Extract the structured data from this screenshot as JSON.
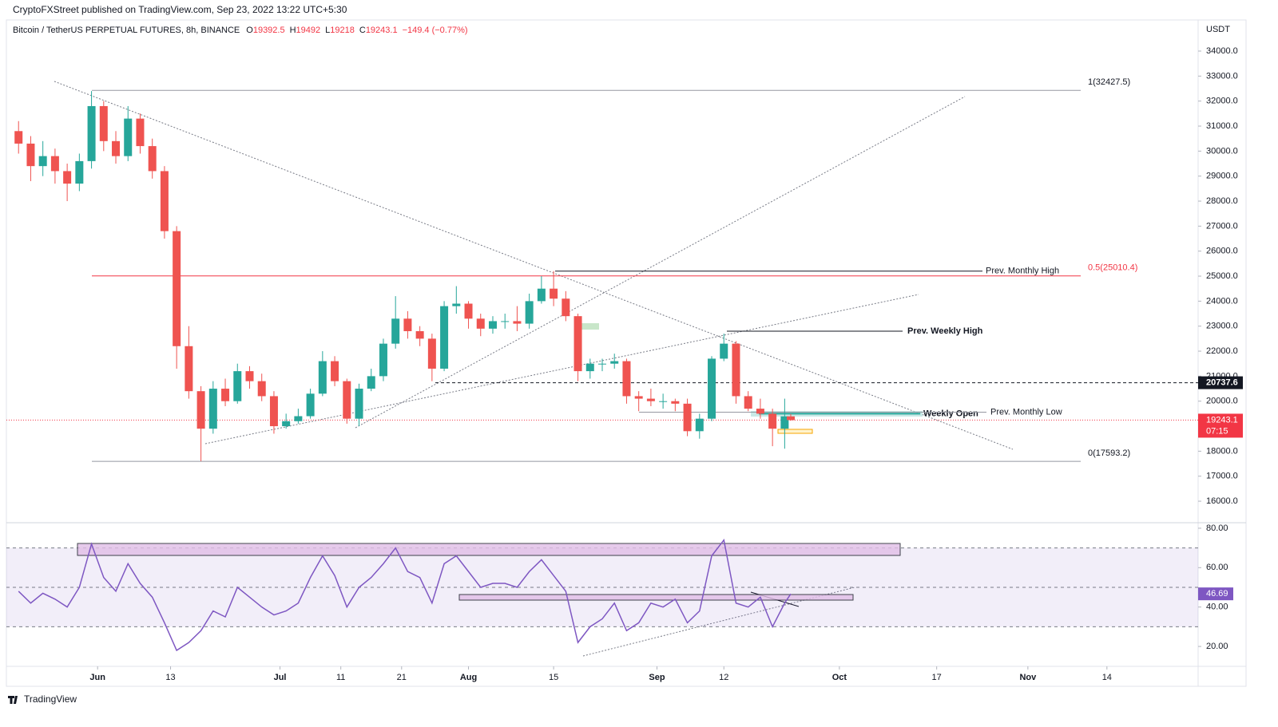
{
  "header": {
    "publisher": "CryptoFXStreet published on TradingView.com, Sep 23, 2022 13:22 UTC+5:30",
    "footer": "TradingView"
  },
  "chart_data": [
    {
      "type": "candlestick",
      "title": "Bitcoin / TetherUS PERPETUAL FUTURES, 8h, BINANCE",
      "ohlc_legend": [
        {
          "key": "O",
          "value": 19392.5
        },
        {
          "key": "H",
          "value": 19492.0
        },
        {
          "key": "L",
          "value": 19218.0
        },
        {
          "key": "C",
          "value": 19243.1
        }
      ],
      "change_label": "−149.4 (−0.77%)",
      "currency": "USDT",
      "x": [
        "2022-05-19",
        "2022-05-21",
        "2022-05-23",
        "2022-05-25",
        "2022-05-27",
        "2022-05-29",
        "2022-05-31",
        "2022-06-02",
        "2022-06-04",
        "2022-06-06",
        "2022-06-08",
        "2022-06-10",
        "2022-06-12",
        "2022-06-14",
        "2022-06-16",
        "2022-06-18",
        "2022-06-20",
        "2022-06-22",
        "2022-06-24",
        "2022-06-26",
        "2022-06-28",
        "2022-06-30",
        "2022-07-02",
        "2022-07-04",
        "2022-07-06",
        "2022-07-08",
        "2022-07-10",
        "2022-07-12",
        "2022-07-14",
        "2022-07-16",
        "2022-07-18",
        "2022-07-20",
        "2022-07-22",
        "2022-07-24",
        "2022-07-26",
        "2022-07-28",
        "2022-07-30",
        "2022-08-01",
        "2022-08-03",
        "2022-08-05",
        "2022-08-07",
        "2022-08-09",
        "2022-08-11",
        "2022-08-13",
        "2022-08-15",
        "2022-08-17",
        "2022-08-19",
        "2022-08-21",
        "2022-08-23",
        "2022-08-25",
        "2022-08-27",
        "2022-08-29",
        "2022-08-31",
        "2022-09-02",
        "2022-09-04",
        "2022-09-06",
        "2022-09-08",
        "2022-09-10",
        "2022-09-12",
        "2022-09-14",
        "2022-09-16",
        "2022-09-18",
        "2022-09-20",
        "2022-09-22",
        "2022-09-23"
      ],
      "open": [
        30800,
        30300,
        29400,
        29800,
        29200,
        28700,
        29600,
        31800,
        30400,
        29800,
        31300,
        30200,
        29200,
        26800,
        22200,
        20400,
        18900,
        20500,
        20000,
        21200,
        20800,
        20200,
        19000,
        19200,
        19400,
        20300,
        21600,
        20800,
        19300,
        20500,
        21000,
        22300,
        23300,
        22800,
        22500,
        21300,
        23800,
        23900,
        23300,
        22900,
        23200,
        23200,
        23100,
        24000,
        24500,
        24100,
        23400,
        21200,
        21500,
        21500,
        21600,
        20200,
        20100,
        20000,
        20000,
        19900,
        18800,
        19300,
        21700,
        22300,
        20200,
        19700,
        19500,
        18900,
        19392.5
      ],
      "high": [
        31200,
        30600,
        30400,
        30100,
        29500,
        29900,
        32400,
        32000,
        30800,
        31800,
        31500,
        30500,
        29400,
        27000,
        23000,
        20600,
        20800,
        20900,
        21500,
        21400,
        21100,
        20400,
        19500,
        19700,
        20500,
        22000,
        21800,
        20900,
        20700,
        21300,
        22500,
        24200,
        23600,
        23000,
        22700,
        24000,
        24600,
        24000,
        23500,
        23400,
        23500,
        23800,
        24300,
        25000,
        25200,
        24400,
        23500,
        21700,
        21700,
        21900,
        21700,
        20400,
        20500,
        20300,
        20100,
        20100,
        19500,
        21800,
        22700,
        22400,
        20400,
        20100,
        19700,
        20100,
        19492.0
      ],
      "low": [
        29900,
        28800,
        29000,
        28700,
        28000,
        28400,
        29300,
        30000,
        29500,
        29600,
        29900,
        28900,
        26500,
        21300,
        20100,
        17600,
        18700,
        19800,
        19900,
        20500,
        20000,
        18700,
        18900,
        19100,
        19300,
        20200,
        20600,
        19100,
        19000,
        20400,
        20800,
        22100,
        22500,
        22200,
        20800,
        21200,
        23500,
        22900,
        22600,
        22700,
        22900,
        22800,
        22900,
        23900,
        23800,
        23200,
        20800,
        20900,
        21200,
        21300,
        19900,
        19600,
        19800,
        19700,
        19600,
        18600,
        18500,
        19200,
        21600,
        19900,
        19600,
        19300,
        18200,
        18100,
        19218.0
      ],
      "close": [
        30300,
        29400,
        29800,
        29200,
        28700,
        29600,
        31800,
        30400,
        29800,
        31300,
        30200,
        29200,
        26800,
        22200,
        20400,
        18900,
        20500,
        20000,
        21200,
        20800,
        20200,
        19000,
        19200,
        19400,
        20300,
        21600,
        20800,
        19300,
        20500,
        21000,
        22300,
        23300,
        22800,
        22500,
        21300,
        23800,
        23900,
        23300,
        22900,
        23200,
        23200,
        23100,
        24000,
        24500,
        24100,
        23400,
        21200,
        21500,
        21500,
        21600,
        20200,
        20100,
        20000,
        20000,
        19900,
        18800,
        19300,
        21700,
        22300,
        20200,
        19700,
        19500,
        18900,
        19392.5,
        19243.1
      ],
      "up_color": "#26a69a",
      "down_color": "#ef5350",
      "xlim": [
        "2022-05-17",
        "2022-11-29"
      ],
      "xticks": [
        {
          "value": "2022-06-01",
          "label": "Jun"
        },
        {
          "value": "2022-06-13",
          "label": "13"
        },
        {
          "value": "2022-07-01",
          "label": "Jul"
        },
        {
          "value": "2022-07-11",
          "label": "11"
        },
        {
          "value": "2022-07-21",
          "label": "21"
        },
        {
          "value": "2022-08-01",
          "label": "Aug"
        },
        {
          "value": "2022-08-15",
          "label": "15"
        },
        {
          "value": "2022-09-01",
          "label": "Sep"
        },
        {
          "value": "2022-09-12",
          "label": "12"
        },
        {
          "value": "2022-10-01",
          "label": "Oct"
        },
        {
          "value": "2022-10-17",
          "label": "17"
        },
        {
          "value": "2022-11-01",
          "label": "Nov"
        },
        {
          "value": "2022-11-14",
          "label": "14"
        }
      ],
      "ylim": [
        15140,
        35245
      ],
      "yticks": [
        {
          "value": 16000,
          "label": "16000.0"
        },
        {
          "value": 17000,
          "label": "17000.0"
        },
        {
          "value": 18000,
          "label": "18000.0"
        },
        {
          "value": 19000,
          "label": "19000.0"
        },
        {
          "value": 20000,
          "label": "20000.0"
        },
        {
          "value": 21000,
          "label": "21000.0"
        },
        {
          "value": 22000,
          "label": "22000.0"
        },
        {
          "value": 23000,
          "label": "23000.0"
        },
        {
          "value": 24000,
          "label": "24000.0"
        },
        {
          "value": 25000,
          "label": "25000.0"
        },
        {
          "value": 26000,
          "label": "26000.0"
        },
        {
          "value": 27000,
          "label": "27000.0"
        },
        {
          "value": 28000,
          "label": "28000.0"
        },
        {
          "value": 29000,
          "label": "29000.0"
        },
        {
          "value": 30000,
          "label": "30000.0"
        },
        {
          "value": 31000,
          "label": "31000.0"
        },
        {
          "value": 32000,
          "label": "32000.0"
        },
        {
          "value": 33000,
          "label": "33000.0"
        },
        {
          "value": 34000,
          "label": "34000.0"
        }
      ],
      "grid": false,
      "levels": [
        {
          "value": 32427.5,
          "label": "1(32427.5)",
          "color": "#9598a1"
        },
        {
          "value": 25010.4,
          "label": "0.5(25010.4)",
          "color": "#f23645"
        },
        {
          "value": 17593.2,
          "label": "0(17593.2)",
          "color": "#9598a1"
        },
        {
          "value": 25200,
          "label": "Prev. Monthly High",
          "color": "#131722"
        },
        {
          "value": 22800,
          "label": "Prev. Weekly High",
          "color": "#131722"
        },
        {
          "value": 19500,
          "label": "Weekly Open",
          "color": "#26a69a"
        },
        {
          "value": 19560,
          "label": "Prev. Monthly Low",
          "color": "#9598a1"
        },
        {
          "value": 20737.6,
          "label": "20737.6",
          "color": "#131722"
        }
      ],
      "last_price": {
        "value": 19243.1,
        "countdown": "07:15",
        "color": "#f23645"
      }
    },
    {
      "type": "line",
      "color": "#7e57c2",
      "x": [
        "2022-05-19",
        "2022-05-21",
        "2022-05-23",
        "2022-05-25",
        "2022-05-27",
        "2022-05-29",
        "2022-05-31",
        "2022-06-02",
        "2022-06-04",
        "2022-06-06",
        "2022-06-08",
        "2022-06-10",
        "2022-06-12",
        "2022-06-14",
        "2022-06-16",
        "2022-06-18",
        "2022-06-20",
        "2022-06-22",
        "2022-06-24",
        "2022-06-26",
        "2022-06-28",
        "2022-06-30",
        "2022-07-02",
        "2022-07-04",
        "2022-07-06",
        "2022-07-08",
        "2022-07-10",
        "2022-07-12",
        "2022-07-14",
        "2022-07-16",
        "2022-07-18",
        "2022-07-20",
        "2022-07-22",
        "2022-07-24",
        "2022-07-26",
        "2022-07-28",
        "2022-07-30",
        "2022-08-01",
        "2022-08-03",
        "2022-08-05",
        "2022-08-07",
        "2022-08-09",
        "2022-08-11",
        "2022-08-13",
        "2022-08-15",
        "2022-08-17",
        "2022-08-19",
        "2022-08-21",
        "2022-08-23",
        "2022-08-25",
        "2022-08-27",
        "2022-08-29",
        "2022-08-31",
        "2022-09-02",
        "2022-09-04",
        "2022-09-06",
        "2022-09-08",
        "2022-09-10",
        "2022-09-12",
        "2022-09-14",
        "2022-09-16",
        "2022-09-18",
        "2022-09-20",
        "2022-09-22",
        "2022-09-23"
      ],
      "values": [
        48,
        42,
        47,
        44,
        40,
        50,
        72,
        55,
        48,
        62,
        52,
        45,
        32,
        18,
        22,
        28,
        38,
        35,
        50,
        45,
        40,
        36,
        38,
        42,
        55,
        66,
        56,
        40,
        50,
        55,
        62,
        70,
        58,
        55,
        42,
        62,
        66,
        58,
        50,
        52,
        52,
        50,
        58,
        64,
        56,
        48,
        22,
        30,
        34,
        42,
        28,
        32,
        42,
        40,
        44,
        32,
        38,
        66,
        74,
        42,
        40,
        45,
        30,
        42,
        46.69
      ],
      "ylim": [
        9.9,
        82.8
      ],
      "yticks": [
        {
          "value": 20,
          "label": "20.00"
        },
        {
          "value": 40,
          "label": "40.00"
        },
        {
          "value": 60,
          "label": "60.00"
        },
        {
          "value": 80,
          "label": "80.00"
        }
      ],
      "levels": [
        70,
        50,
        30
      ]
    }
  ]
}
